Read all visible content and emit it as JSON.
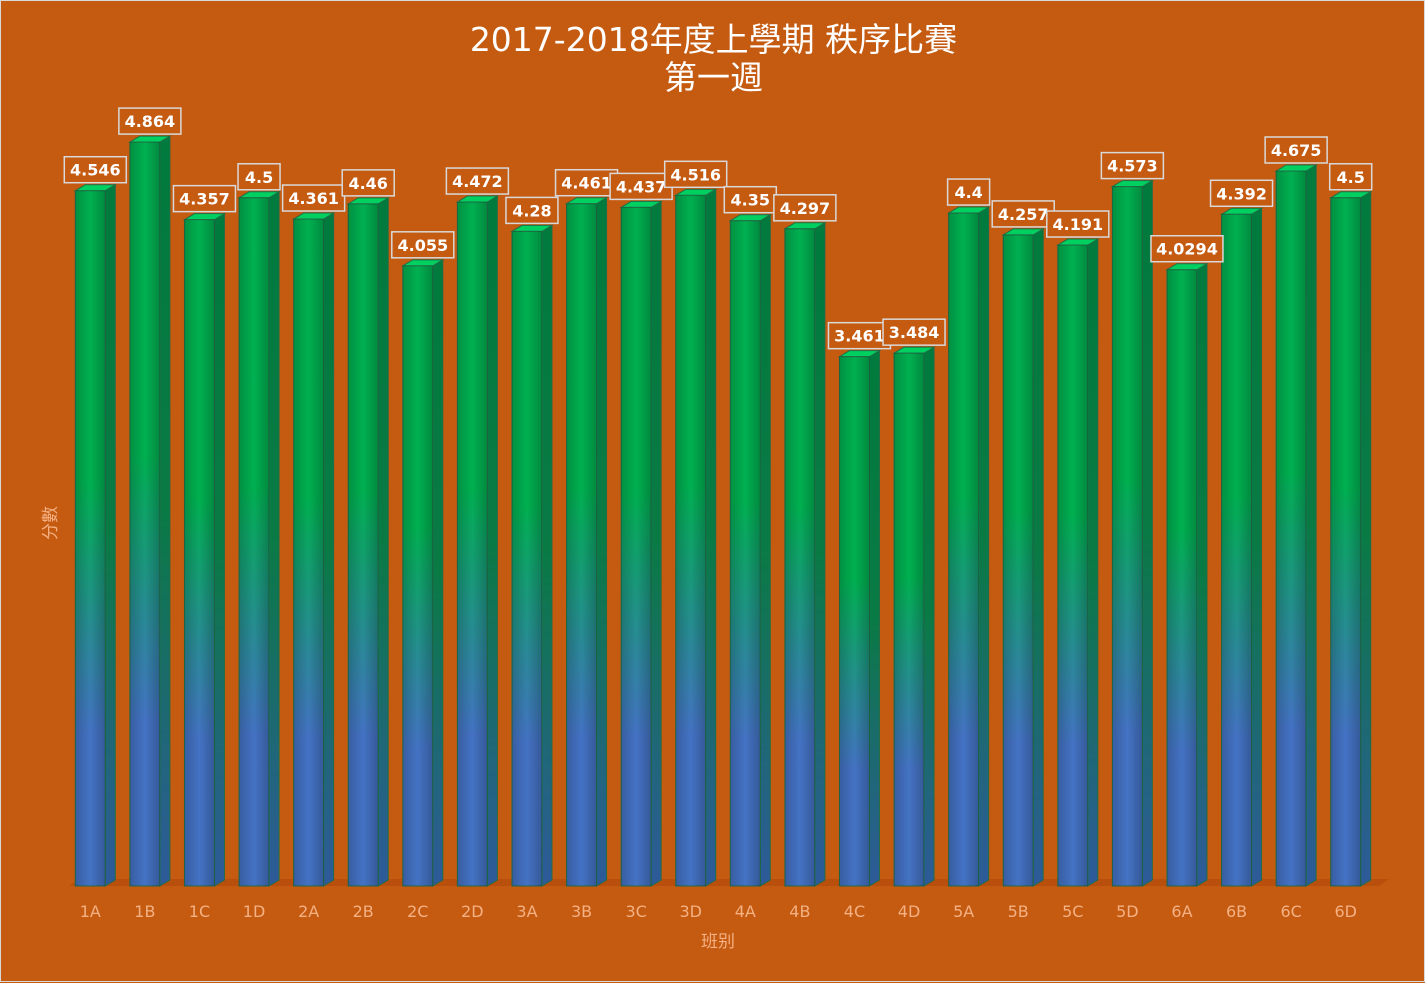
{
  "colors": {
    "background": "#c55a11",
    "bar_front_top": "#00b050",
    "bar_front_bottom": "#4472c4",
    "bar_side": "#007a3d",
    "bar_top": "#00d060",
    "label_box": "#c55a11",
    "label_border": "#d9d9d9",
    "axis_text": "#f4b183"
  },
  "chart_data": {
    "type": "bar",
    "title": "2017-2018年度上學期 秩序比賽",
    "subtitle": "第一週",
    "xlabel": "班别",
    "ylabel": "分數",
    "ylim": [
      0,
      5.1
    ],
    "grid": false,
    "legend": "none",
    "categories": [
      "1A",
      "1B",
      "1C",
      "1D",
      "2A",
      "2B",
      "2C",
      "2D",
      "3A",
      "3B",
      "3C",
      "3D",
      "4A",
      "4B",
      "4C",
      "4D",
      "5A",
      "5B",
      "5C",
      "5D",
      "6A",
      "6B",
      "6C",
      "6D"
    ],
    "values": [
      4.546,
      4.864,
      4.357,
      4.5,
      4.361,
      4.46,
      4.055,
      4.472,
      4.28,
      4.461,
      4.437,
      4.516,
      4.35,
      4.297,
      3.461,
      3.484,
      4.4,
      4.257,
      4.191,
      4.573,
      4.0294,
      4.392,
      4.675,
      4.5
    ],
    "value_labels": [
      "4.546",
      "4.864",
      "4.357",
      "4.5",
      "4.361",
      "4.46",
      "4.055",
      "4.472",
      "4.28",
      "4.461",
      "4.437",
      "4.516",
      "4.35",
      "4.297",
      "3.461",
      "3.484",
      "4.4",
      "4.257",
      "4.191",
      "4.573",
      "4.0294",
      "4.392",
      "4.675",
      "4.5"
    ]
  }
}
